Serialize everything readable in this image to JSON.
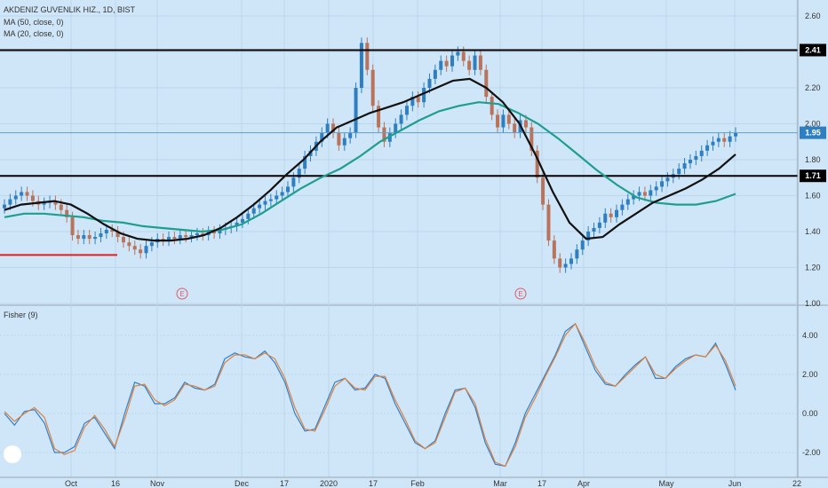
{
  "legend": {
    "symbol": "AKDENIZ GUVENLIK HIZ., 1D, BIST",
    "ma50": "MA (50, close, 0)",
    "ma20": "MA (20, close, 0)",
    "fisher": "Fisher (9)"
  },
  "colors": {
    "background": "#cfe6f8",
    "up_candle": "#2e7fc1",
    "down_candle": "#b8735a",
    "ma50": "#1e9e8e",
    "ma20": "#111111",
    "fisher": "#2f80d1",
    "trigger": "#e0813a",
    "support_red": "#e02020"
  },
  "chart_data": [
    {
      "type": "candlestick",
      "title": "AKDENIZ GUVENLIK HIZ., 1D, BIST",
      "x_labels": [
        "Oct",
        "16",
        "Nov",
        "Dec",
        "17",
        "2020",
        "17",
        "Feb",
        "Mar",
        "17",
        "Apr",
        "May",
        "Jun",
        "22"
      ],
      "y_ticks": [
        "2.60",
        "2.40",
        "2.20",
        "2.00",
        "1.80",
        "1.60",
        "1.40",
        "1.20",
        "1.00"
      ],
      "ylim": [
        1.0,
        2.6
      ],
      "price_labels": [
        "2.41",
        "1.95",
        "1.71"
      ],
      "horizontal_levels": [
        2.41,
        1.71
      ],
      "support_level": 1.27,
      "earnings_markers": [
        "E",
        "E"
      ],
      "closes": [
        1.55,
        1.58,
        1.6,
        1.62,
        1.6,
        1.57,
        1.55,
        1.56,
        1.57,
        1.55,
        1.52,
        1.48,
        1.38,
        1.36,
        1.38,
        1.36,
        1.37,
        1.39,
        1.41,
        1.4,
        1.37,
        1.34,
        1.32,
        1.3,
        1.28,
        1.32,
        1.34,
        1.36,
        1.35,
        1.37,
        1.36,
        1.38,
        1.37,
        1.38,
        1.39,
        1.38,
        1.4,
        1.39,
        1.41,
        1.42,
        1.43,
        1.45,
        1.47,
        1.5,
        1.53,
        1.55,
        1.57,
        1.58,
        1.6,
        1.62,
        1.65,
        1.7,
        1.75,
        1.82,
        1.85,
        1.9,
        1.95,
        2.0,
        1.95,
        1.88,
        1.92,
        1.95,
        2.2,
        2.45,
        2.3,
        2.1,
        1.98,
        1.9,
        1.95,
        2.0,
        2.05,
        2.1,
        2.15,
        2.12,
        2.2,
        2.25,
        2.3,
        2.35,
        2.32,
        2.38,
        2.4,
        2.35,
        2.3,
        2.38,
        2.3,
        2.15,
        2.05,
        1.98,
        2.05,
        2.0,
        1.95,
        2.02,
        1.98,
        1.85,
        1.7,
        1.55,
        1.35,
        1.25,
        1.2,
        1.22,
        1.25,
        1.3,
        1.35,
        1.4,
        1.42,
        1.45,
        1.5,
        1.48,
        1.52,
        1.55,
        1.58,
        1.6,
        1.62,
        1.6,
        1.63,
        1.65,
        1.68,
        1.7,
        1.72,
        1.75,
        1.78,
        1.8,
        1.82,
        1.85,
        1.88,
        1.9,
        1.92,
        1.9,
        1.93,
        1.95
      ],
      "ma20": [
        1.52,
        1.55,
        1.56,
        1.57,
        1.55,
        1.5,
        1.44,
        1.39,
        1.36,
        1.35,
        1.35,
        1.36,
        1.38,
        1.42,
        1.48,
        1.55,
        1.63,
        1.72,
        1.8,
        1.9,
        1.98,
        2.02,
        2.06,
        2.09,
        2.12,
        2.16,
        2.2,
        2.24,
        2.25,
        2.2,
        2.12,
        2.0,
        1.82,
        1.62,
        1.45,
        1.36,
        1.37,
        1.44,
        1.5,
        1.56,
        1.6,
        1.64,
        1.69,
        1.75,
        1.83
      ],
      "ma50": [
        1.48,
        1.5,
        1.5,
        1.49,
        1.48,
        1.46,
        1.45,
        1.43,
        1.42,
        1.41,
        1.4,
        1.41,
        1.44,
        1.5,
        1.57,
        1.64,
        1.7,
        1.75,
        1.82,
        1.9,
        1.96,
        2.02,
        2.07,
        2.1,
        2.12,
        2.11,
        2.06,
        2.0,
        1.92,
        1.83,
        1.74,
        1.66,
        1.59,
        1.56,
        1.55,
        1.55,
        1.57,
        1.61
      ]
    },
    {
      "type": "line",
      "title": "Fisher (9)",
      "y_ticks": [
        "4.00",
        "2.00",
        "0.00",
        "-2.00"
      ],
      "ylim": [
        -3.0,
        5.5
      ],
      "series": [
        {
          "values": [
            0.0,
            -0.6,
            0.1,
            0.2,
            -0.5,
            -2.0,
            -2.0,
            -1.7,
            -0.5,
            -0.2,
            -1.0,
            -1.8,
            0.0,
            1.6,
            1.4,
            0.5,
            0.5,
            0.8,
            1.6,
            1.3,
            1.2,
            1.5,
            2.8,
            3.1,
            2.9,
            2.8,
            3.2,
            2.6,
            1.6,
            0.0,
            -0.9,
            -0.8,
            0.4,
            1.6,
            1.8,
            1.2,
            1.3,
            2.0,
            1.8,
            0.5,
            -0.5,
            -1.5,
            -1.8,
            -1.4,
            0.0,
            1.2,
            1.3,
            0.3,
            -1.5,
            -2.6,
            -2.7,
            -1.5,
            0.0,
            1.0,
            2.0,
            3.0,
            4.2,
            4.6,
            3.4,
            2.2,
            1.5,
            1.4,
            2.0,
            2.5,
            2.9,
            1.8,
            1.8,
            2.4,
            2.8,
            3.0,
            2.9,
            3.6,
            2.5,
            1.2
          ]
        },
        {
          "values": [
            0.1,
            -0.4,
            0.0,
            0.3,
            -0.2,
            -1.8,
            -2.1,
            -1.9,
            -0.7,
            -0.1,
            -0.8,
            -1.7,
            -0.3,
            1.4,
            1.5,
            0.7,
            0.4,
            0.7,
            1.5,
            1.4,
            1.2,
            1.4,
            2.6,
            3.0,
            3.0,
            2.8,
            3.1,
            2.8,
            1.8,
            0.3,
            -0.8,
            -0.9,
            0.2,
            1.4,
            1.8,
            1.3,
            1.2,
            1.9,
            1.9,
            0.7,
            -0.3,
            -1.4,
            -1.8,
            -1.5,
            -0.2,
            1.1,
            1.3,
            0.5,
            -1.3,
            -2.5,
            -2.7,
            -1.7,
            -0.2,
            0.8,
            1.9,
            2.9,
            4.0,
            4.6,
            3.6,
            2.4,
            1.6,
            1.4,
            1.9,
            2.4,
            2.9,
            2.0,
            1.8,
            2.3,
            2.7,
            3.0,
            2.9,
            3.5,
            2.7,
            1.4
          ]
        }
      ]
    }
  ]
}
